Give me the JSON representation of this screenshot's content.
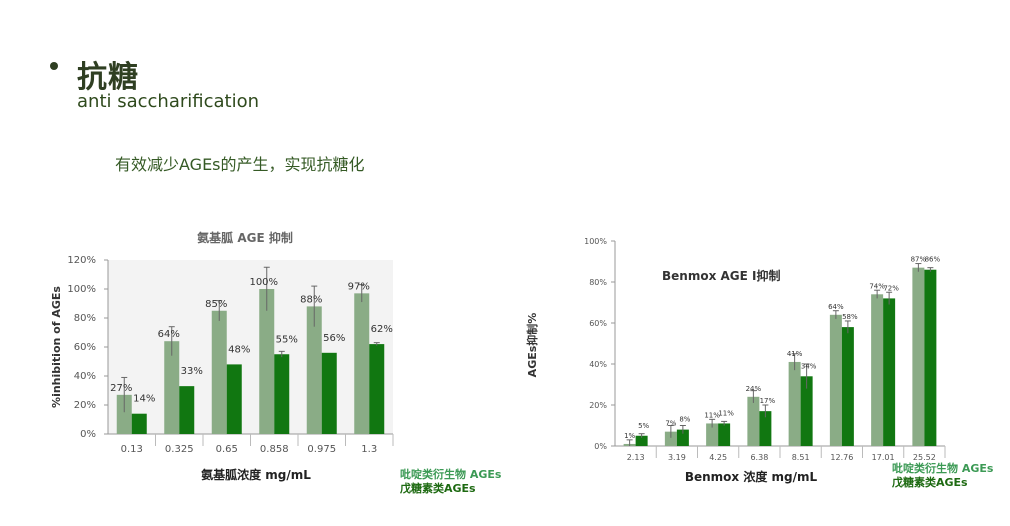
{
  "header": {
    "title": "抗糖",
    "subtitle": "anti saccharification",
    "note": "有效减少AGEs的产生，实现抗糖化"
  },
  "colors": {
    "light": "#8aac86",
    "dark": "#117711",
    "legend_light": "#3c9a55",
    "legend_dark": "#1e6a12"
  },
  "chart_data": [
    {
      "type": "bar",
      "title": "氨基胍 AGE 抑制",
      "xlabel": "氨基胍浓度 mg/mL",
      "ylabel": "%inhibition of AGEs",
      "ylim": [
        0,
        120
      ],
      "yticks": [
        "0%",
        "20%",
        "40%",
        "60%",
        "80%",
        "100%",
        "120%"
      ],
      "categories": [
        "0.13",
        "0.325",
        "0.65",
        "0.858",
        "0.975",
        "1.3"
      ],
      "series": [
        {
          "name": "吡啶类衍生物 AGEs",
          "values": [
            27,
            64,
            85,
            100,
            88,
            97
          ],
          "errors": [
            12,
            10,
            7,
            15,
            14,
            6
          ],
          "labels": [
            "27%",
            "64%",
            "85%",
            "100%",
            "88%",
            "97%"
          ]
        },
        {
          "name": "戊糖素类AGEs",
          "values": [
            14,
            33,
            48,
            55,
            56,
            62
          ],
          "errors": [
            0,
            0,
            0,
            2,
            0,
            1
          ],
          "labels": [
            "14%",
            "33%",
            "48%",
            "55%",
            "56%",
            "62%"
          ]
        }
      ],
      "legend": "bottom-right"
    },
    {
      "type": "bar",
      "title": "Benmox    AGE I抑制",
      "xlabel": "Benmox    浓度 mg/mL",
      "ylabel": "AGEs抑制%",
      "ylim": [
        0,
        100
      ],
      "yticks": [
        "0%",
        "20%",
        "40%",
        "60%",
        "80%",
        "100%"
      ],
      "categories": [
        "2.13",
        "3.19",
        "4.25",
        "6.38",
        "8.51",
        "12.76",
        "17.01",
        "25.52"
      ],
      "series": [
        {
          "name": "吡啶类衍生物 AGEs",
          "values": [
            1,
            7,
            11,
            24,
            41,
            64,
            74,
            87
          ],
          "errors": [
            2,
            3,
            2,
            3,
            4,
            2,
            2,
            2
          ],
          "labels": [
            "1%",
            "7%",
            "11%",
            "24%",
            "41%",
            "64%",
            "74%",
            "87%"
          ]
        },
        {
          "name": "戊糖素类AGEs",
          "values": [
            5,
            8,
            11,
            17,
            34,
            58,
            72,
            86
          ],
          "errors": [
            1,
            2,
            1,
            3,
            6,
            3,
            3,
            1
          ],
          "labels": [
            "5%",
            "8%",
            "11%",
            "17%",
            "34%",
            "58%",
            "72%",
            "86%"
          ]
        }
      ],
      "legend": "bottom-right"
    }
  ]
}
